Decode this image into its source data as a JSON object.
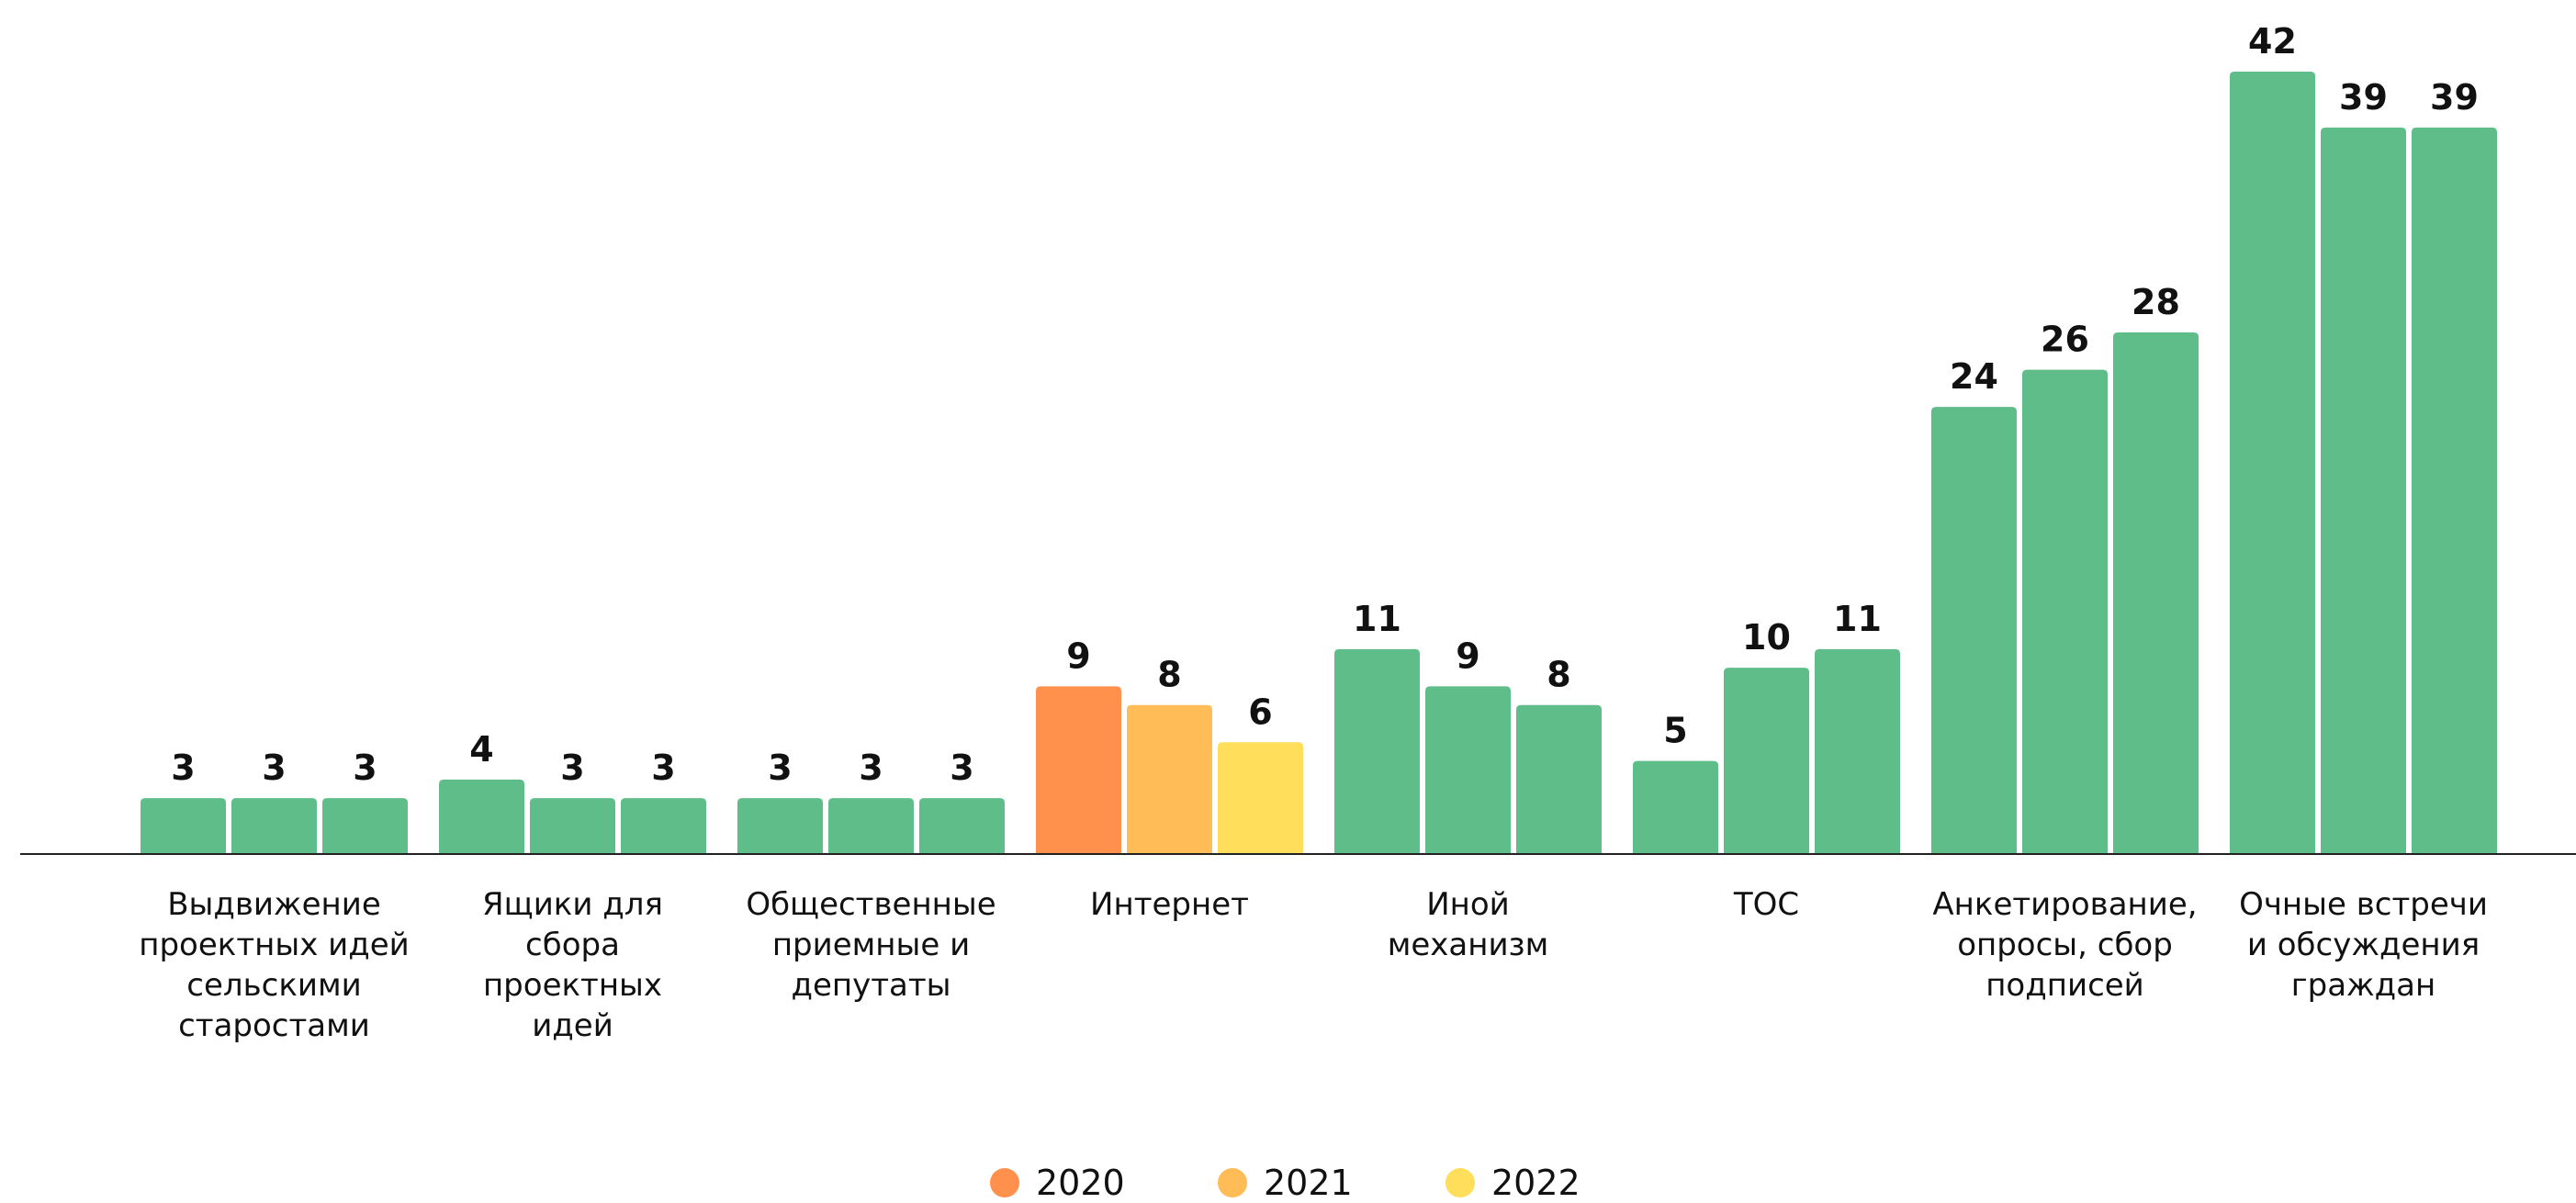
{
  "chart_data": {
    "type": "bar",
    "categories": [
      [
        "Выдвижение",
        "проектных идей",
        "сельскими",
        "старостами"
      ],
      [
        "Ящики для",
        "сбора",
        "проектных",
        "идей"
      ],
      [
        "Общественные",
        "приемные и",
        "депутаты"
      ],
      [
        "Интернет"
      ],
      [
        "Иной",
        "механизм"
      ],
      [
        "ТОС"
      ],
      [
        "Анкетирование,",
        "опросы, сбор",
        "подписей"
      ],
      [
        "Очные встречи",
        "и обсуждения",
        "граждан"
      ]
    ],
    "series": [
      {
        "name": "2020",
        "values": [
          3,
          4,
          3,
          9,
          11,
          5,
          24,
          42
        ]
      },
      {
        "name": "2021",
        "values": [
          3,
          3,
          3,
          8,
          9,
          10,
          26,
          39
        ]
      },
      {
        "name": "2022",
        "values": [
          3,
          3,
          3,
          6,
          8,
          11,
          28,
          39
        ]
      }
    ],
    "ylim": [
      0,
      42
    ],
    "legend_position": "bottom-center",
    "grid": false,
    "colors": {
      "default_bar": "#5fbd8a",
      "highlight_category_index": 3,
      "highlight": [
        "#ff914d",
        "#ffbc57",
        "#ffde5b"
      ],
      "legend": [
        "#ff914d",
        "#ffbc57",
        "#ffde5b"
      ],
      "axis": "#222222"
    }
  }
}
